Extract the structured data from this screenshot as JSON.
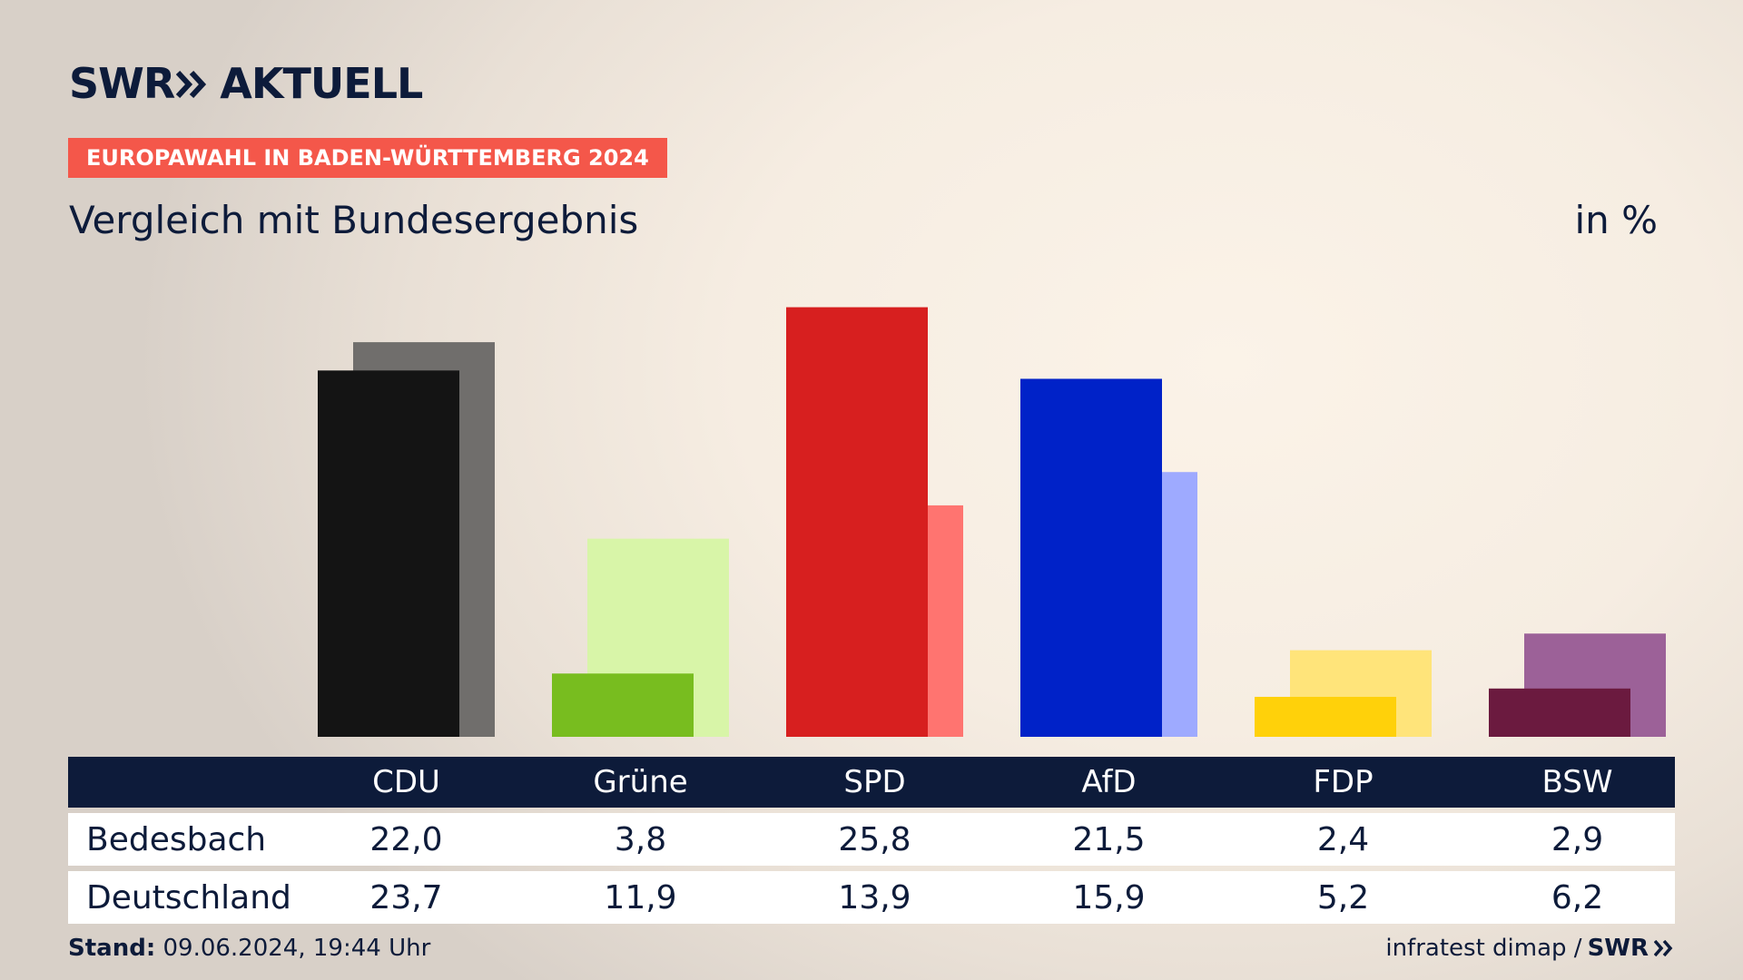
{
  "header": {
    "logo_text_left": "SWR",
    "logo_text_right": "AKTUELL",
    "badge": "EUROPAWAHL IN BADEN-WÜRTTEMBERG 2024",
    "subtitle": "Vergleich mit Bundesergebnis",
    "unit": "in %"
  },
  "table": {
    "rows": [
      {
        "label": "Bedesbach"
      },
      {
        "label": "Deutschland"
      }
    ]
  },
  "footer": {
    "stand_label": "Stand:",
    "stand_value": "09.06.2024, 19:44 Uhr",
    "source": "infratest dimap /",
    "source_logo": "SWR"
  },
  "chart_data": {
    "type": "bar",
    "title": "Vergleich mit Bundesergebnis",
    "ylabel": "in %",
    "ylim": [
      0,
      30
    ],
    "categories": [
      "CDU",
      "Grüne",
      "SPD",
      "AfD",
      "FDP",
      "BSW"
    ],
    "series": [
      {
        "name": "Bedesbach",
        "values": [
          22.0,
          3.8,
          25.8,
          21.5,
          2.4,
          2.9
        ],
        "labels": [
          "22,0",
          "3,8",
          "25,8",
          "21,5",
          "2,4",
          "2,9"
        ],
        "colors": [
          "#141414",
          "#78bd1f",
          "#d71f1f",
          "#0022c8",
          "#ffd10a",
          "#6b1a3f"
        ]
      },
      {
        "name": "Deutschland",
        "values": [
          23.7,
          11.9,
          13.9,
          15.9,
          5.2,
          6.2
        ],
        "labels": [
          "23,7",
          "11,9",
          "13,9",
          "15,9",
          "5,2",
          "6,2"
        ],
        "colors": [
          "#706e6c",
          "#d8f5a8",
          "#ff7470",
          "#9eaaff",
          "#ffe47a",
          "#9c6198"
        ]
      }
    ]
  }
}
